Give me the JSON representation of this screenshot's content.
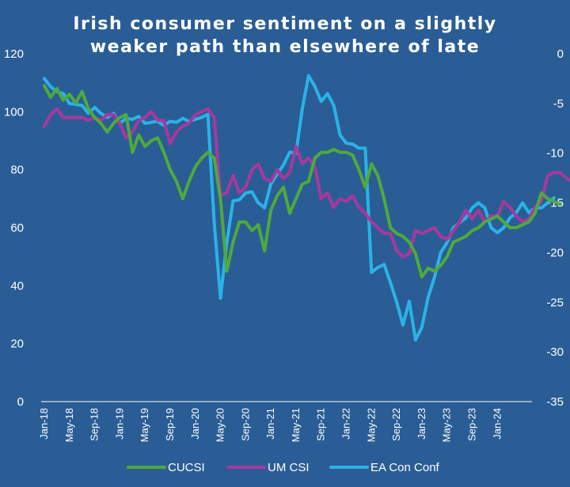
{
  "chart_data": {
    "type": "line",
    "title_lines": [
      "Irish consumer sentiment on a slightly",
      "weaker path than elsewhere of late"
    ],
    "left_axis": {
      "min": 0,
      "max": 120,
      "ticks": [
        "0",
        "20",
        "40",
        "60",
        "80",
        "100",
        "120"
      ]
    },
    "right_axis": {
      "min": -35,
      "max": 0,
      "ticks": [
        "-35",
        "-30",
        "-25",
        "-20",
        "-15",
        "-10",
        "-5",
        "0"
      ]
    },
    "x_tick_labels": [
      "Jan-18",
      "May-18",
      "Sep-18",
      "Jan-19",
      "May-19",
      "Sep-19",
      "Jan-20",
      "May-20",
      "Sep-20",
      "Jan-21",
      "May-21",
      "Sep-21",
      "Jan-22",
      "May-22",
      "Sep-22",
      "Jan-23",
      "May-23",
      "Sep-23",
      "Jan-24"
    ],
    "x_start": "Jan-18",
    "x_end": "Jun-24",
    "legend_position": "bottom",
    "grid": false,
    "series": [
      {
        "name": "CUCSI",
        "color": "#4faa3c",
        "axis": "left",
        "values": [
          109,
          105,
          108,
          104,
          106,
          103,
          107,
          101,
          98,
          96,
          93,
          96,
          98,
          99,
          86,
          92,
          88,
          90,
          91,
          86,
          80,
          76,
          70,
          76,
          81,
          84,
          86,
          84,
          70,
          45,
          55,
          62,
          62,
          59,
          61,
          52,
          66,
          71,
          74,
          65,
          70,
          75,
          76,
          84,
          86,
          86,
          87,
          86,
          86,
          85,
          80,
          74,
          82,
          78,
          70,
          60,
          58,
          57,
          55,
          51,
          43,
          46,
          45,
          47,
          50,
          55,
          56,
          57,
          59,
          60,
          62,
          63,
          64,
          62,
          60,
          60,
          61,
          62,
          65,
          72,
          70,
          69,
          68
        ]
      },
      {
        "name": "UM CSI",
        "color": "#a8389e",
        "axis": "left",
        "values": [
          95,
          99,
          101,
          98,
          98,
          98,
          98,
          97,
          98,
          97,
          99,
          99,
          96,
          91,
          93,
          97,
          98,
          100,
          97,
          97,
          89,
          93,
          95,
          96,
          99,
          100,
          101,
          98,
          71,
          72,
          78,
          72,
          74,
          80,
          82,
          77,
          76,
          80,
          77,
          79,
          88,
          82,
          84,
          81,
          70,
          72,
          67,
          70,
          69,
          71,
          67,
          65,
          62,
          60,
          58,
          58,
          52,
          50,
          51,
          59,
          58,
          59,
          60,
          57,
          56,
          59,
          62,
          66,
          63,
          66,
          62,
          64,
          64,
          69,
          67,
          64,
          62,
          63,
          67,
          69,
          78,
          79,
          79,
          77,
          76
        ]
      },
      {
        "name": "EA Con Conf",
        "color": "#2ab3e8",
        "axis": "right",
        "values": [
          -2.5,
          -3.3,
          -3.8,
          -4.0,
          -5.0,
          -5.1,
          -5.2,
          -6.0,
          -5.4,
          -6.0,
          -6.4,
          -6.0,
          -7.0,
          -6.5,
          -6.6,
          -6.3,
          -7.0,
          -6.9,
          -6.8,
          -7.2,
          -6.8,
          -6.9,
          -6.5,
          -6.8,
          -6.6,
          -6.4,
          -6.1,
          -17,
          -24.6,
          -19.0,
          -14.8,
          -14.7,
          -14.0,
          -13.9,
          -15.0,
          -15.5,
          -13.1,
          -12.1,
          -11.2,
          -9.9,
          -10.0,
          -5.5,
          -2.2,
          -3.3,
          -4.8,
          -4.0,
          -5.2,
          -8.2,
          -9.0,
          -9.1,
          -9.5,
          -9.5,
          -22.0,
          -21.5,
          -21.2,
          -23.0,
          -25.0,
          -27.3,
          -24.9,
          -28.8,
          -27.5,
          -24.5,
          -22.5,
          -20.0,
          -19.0,
          -17.5,
          -17.0,
          -16.5,
          -15.5,
          -15.0,
          -15.5,
          -17.5,
          -18.0,
          -17.5,
          -16.5,
          -16.0,
          -15.0,
          -16.0,
          -15.5,
          -15.5,
          -15.0,
          -14.5
        ]
      }
    ]
  }
}
